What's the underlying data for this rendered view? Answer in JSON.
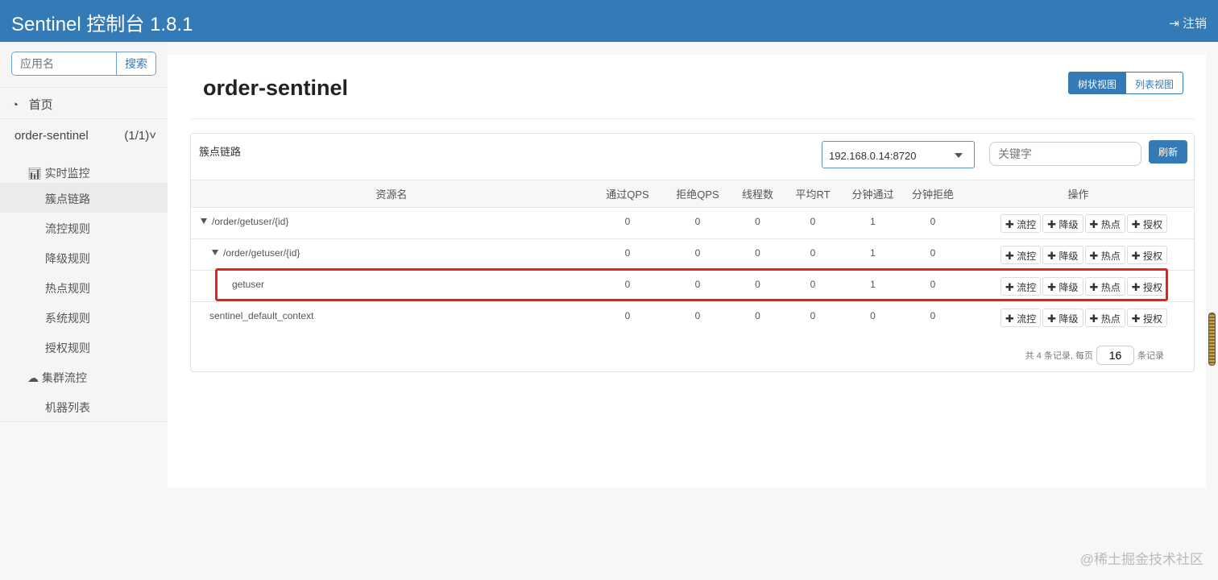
{
  "header": {
    "title": "Sentinel 控制台 1.8.1",
    "logout": "注销"
  },
  "sidebar": {
    "search_placeholder": "应用名",
    "search_button": "搜索",
    "home": "首页",
    "app": {
      "name": "order-sentinel",
      "count": "(1/1)"
    },
    "items": [
      {
        "label": "实时监控",
        "icon": "bar-chart-icon"
      },
      {
        "label": "簇点链路"
      },
      {
        "label": "流控规则"
      },
      {
        "label": "降级规则"
      },
      {
        "label": "热点规则"
      },
      {
        "label": "系统规则"
      },
      {
        "label": "授权规则"
      },
      {
        "label": "集群流控",
        "icon": "cloud-icon"
      },
      {
        "label": "机器列表"
      }
    ]
  },
  "main": {
    "title": "order-sentinel",
    "views": {
      "tree": "树状视图",
      "list": "列表视图"
    },
    "panel": {
      "title": "簇点链路",
      "machine": "192.168.0.14:8720",
      "keyword_placeholder": "关键字",
      "refresh": "刷新",
      "columns": [
        "资源名",
        "通过QPS",
        "拒绝QPS",
        "线程数",
        "平均RT",
        "分钟通过",
        "分钟拒绝",
        "操作"
      ],
      "ops": [
        "流控",
        "降级",
        "热点",
        "授权"
      ],
      "rows": [
        {
          "name": "/order/getuser/{id}",
          "vals": [
            "0",
            "0",
            "0",
            "0",
            "1",
            "0"
          ]
        },
        {
          "name": "/order/getuser/{id}",
          "vals": [
            "0",
            "0",
            "0",
            "0",
            "1",
            "0"
          ]
        },
        {
          "name": "getuser",
          "vals": [
            "0",
            "0",
            "0",
            "0",
            "1",
            "0"
          ]
        },
        {
          "name": "sentinel_default_context",
          "vals": [
            "0",
            "0",
            "0",
            "0",
            "0",
            "0"
          ]
        }
      ],
      "pager": {
        "prefix": "共 4 条记录, 每页",
        "page_size": "16",
        "suffix": "条记录"
      }
    }
  },
  "highlight_color": "#e8211a",
  "watermark": "@稀土掘金技术社区"
}
